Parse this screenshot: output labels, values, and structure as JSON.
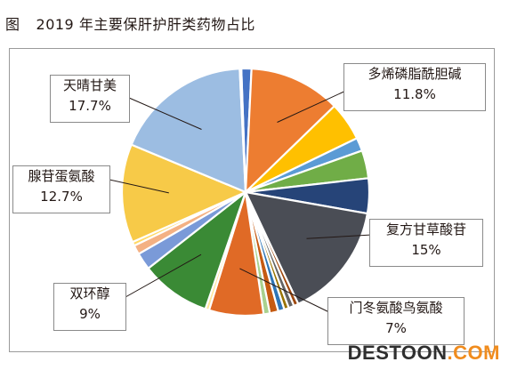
{
  "figure": {
    "label": "图",
    "title": "2019 年主要保肝护肝类药物占比"
  },
  "chart_data": {
    "type": "pie",
    "start_angle_deg": -2,
    "slices": [
      {
        "name": "",
        "value": 1.3,
        "color": "#4472c4"
      },
      {
        "name": "多烯磷脂酰胆碱",
        "value": 11.8,
        "value_label": "11.8%",
        "color": "#ed7d31"
      },
      {
        "name": "",
        "value": 5.0,
        "color": "#ffc000"
      },
      {
        "name": "",
        "value": 1.7,
        "color": "#5b9bd5"
      },
      {
        "name": "",
        "value": 3.6,
        "color": "#70ad47"
      },
      {
        "name": "",
        "value": 4.5,
        "color": "#264478"
      },
      {
        "name": "复方甘草酸苷",
        "value": 15,
        "value_label": "15%",
        "color": "#4a4d55"
      },
      {
        "name": "",
        "value": 0.6,
        "color": "#9e480e"
      },
      {
        "name": "",
        "value": 0.7,
        "color": "#636363"
      },
      {
        "name": "",
        "value": 0.6,
        "color": "#997300"
      },
      {
        "name": "",
        "value": 0.8,
        "color": "#2e75b6"
      },
      {
        "name": "",
        "value": 1.1,
        "color": "#c55a11"
      },
      {
        "name": "",
        "value": 0.8,
        "color": "#a9d18e"
      },
      {
        "name": "门冬氨酸鸟氨酸",
        "value": 7,
        "value_label": "7%",
        "color": "#e06a26"
      },
      {
        "name": "",
        "value": 0.5,
        "color": "#ffe699"
      },
      {
        "name": "双环醇",
        "value": 9,
        "value_label": "9%",
        "color": "#3a8a35"
      },
      {
        "name": "",
        "value": 2.2,
        "color": "#7a9ad8"
      },
      {
        "name": "",
        "value": 1.2,
        "color": "#f4b183"
      },
      {
        "name": "",
        "value": 0.5,
        "color": "#ffd966"
      },
      {
        "name": "腺苷蛋氨酸",
        "value": 12.7,
        "value_label": "12.7%",
        "color": "#f7ca48"
      },
      {
        "name": "天晴甘美",
        "value": 17.7,
        "value_label": "17.7%",
        "color": "#9cbde2"
      },
      {
        "name": "",
        "value": 0.2,
        "color": "#ffffff"
      }
    ]
  },
  "callouts": [
    {
      "name": "多烯磷脂酰胆碱",
      "value_label": "11.8%"
    },
    {
      "name": "天晴甘美",
      "value_label": "17.7%"
    },
    {
      "name": "腺苷蛋氨酸",
      "value_label": "12.7%"
    },
    {
      "name": "复方甘草酸苷",
      "value_label": "15%"
    },
    {
      "name": "双环醇",
      "value_label": "9%"
    },
    {
      "name": "门冬氨酸鸟氨酸",
      "value_label": "7%"
    }
  ],
  "watermark": {
    "main": "DESTOON",
    "suffix": ".COM"
  }
}
